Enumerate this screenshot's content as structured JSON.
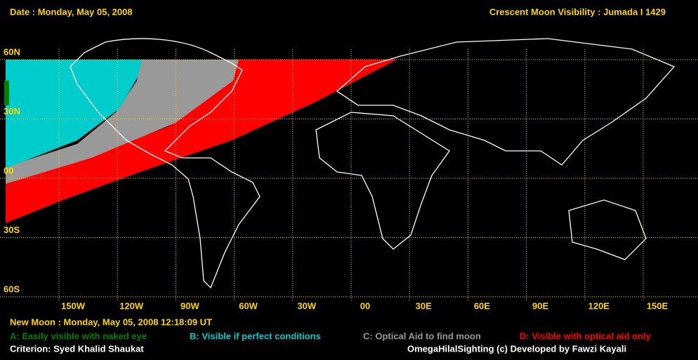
{
  "header": {
    "date": "Date : Monday, May 05, 2008",
    "title": "Crescent Moon Visibility : Jumada I  1429"
  },
  "map": {
    "lat_labels": [
      "60N",
      "30N",
      "00",
      "30S",
      "60S"
    ],
    "lon_labels": [
      "150W",
      "120W",
      "90W",
      "60W",
      "30W",
      "00",
      "30E",
      "60E",
      "90E",
      "120E",
      "150E"
    ]
  },
  "footer": {
    "new_moon": "New Moon : Monday, May 05, 2008  12:18:09  UT",
    "legend": [
      "A: Easily visible with naked eye",
      "B: Visible if perfect conditions",
      "C: Optical Aid to find moon",
      "D: Visible with optical aid only"
    ],
    "criterion": "Criterion: Syed Khalid Shaukat",
    "credit": "OmegaHilalSighting  (c)  Developed by Fawzi Kayali"
  }
}
